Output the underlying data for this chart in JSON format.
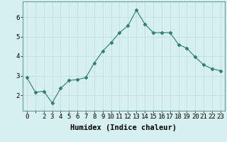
{
  "x": [
    0,
    1,
    2,
    3,
    4,
    5,
    6,
    7,
    8,
    9,
    10,
    11,
    12,
    13,
    14,
    15,
    16,
    17,
    18,
    19,
    20,
    21,
    22,
    23
  ],
  "y": [
    2.9,
    2.15,
    2.2,
    1.6,
    2.35,
    2.75,
    2.8,
    2.9,
    3.65,
    4.25,
    4.7,
    5.2,
    5.55,
    6.35,
    5.65,
    5.2,
    5.2,
    5.2,
    4.6,
    4.4,
    3.95,
    3.55,
    3.35,
    3.25
  ],
  "line_color": "#2e7d6e",
  "marker": "D",
  "marker_size": 2.5,
  "bg_color": "#d6f0f0",
  "grid_color": "#c4dada",
  "xlabel": "Humidex (Indice chaleur)",
  "xlim": [
    -0.5,
    23.5
  ],
  "ylim": [
    1.2,
    6.8
  ],
  "xticks": [
    0,
    1,
    2,
    3,
    4,
    5,
    6,
    7,
    8,
    9,
    10,
    11,
    12,
    13,
    14,
    15,
    16,
    17,
    18,
    19,
    20,
    21,
    22,
    23
  ],
  "yticks": [
    2,
    3,
    4,
    5,
    6
  ],
  "xtick_labels": [
    "0",
    "",
    "2",
    "3",
    "4",
    "5",
    "6",
    "7",
    "8",
    "9",
    "10",
    "11",
    "12",
    "13",
    "14",
    "15",
    "16",
    "17",
    "18",
    "19",
    "20",
    "21",
    "22",
    "23"
  ],
  "spine_color": "#6a9a9a",
  "tick_fontsize": 6.5,
  "xlabel_fontsize": 7.5
}
